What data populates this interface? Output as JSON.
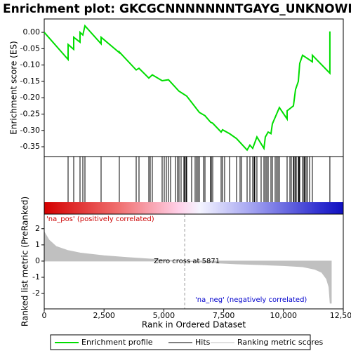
{
  "title": "Enrichment plot: GKCGCNNNNNNNTGAYG_UNKNOWN",
  "legend": [
    "Enrichment profile",
    "Hits",
    "Ranking metric scores"
  ],
  "chart_data": [
    {
      "type": "line",
      "ylabel": "Enrichment score (ES)",
      "color": "#00dd00",
      "x": [
        0,
        998,
        998,
        1232,
        1232,
        1496,
        1496,
        1614,
        1702,
        2377,
        2377,
        3139,
        3139,
        3844,
        3961,
        4372,
        4518,
        4929,
        5193,
        5633,
        5956,
        6484,
        6719,
        6954,
        7042,
        7394,
        7452,
        7746,
        8039,
        8480,
        8597,
        8714,
        8890,
        9184,
        9242,
        9360,
        9477,
        9536,
        9712,
        9829,
        10152,
        10152,
        10416,
        10504,
        10621,
        10680,
        10797,
        11208,
        11208,
        11940,
        11940
      ],
      "values": [
        0,
        -0.083,
        -0.037,
        -0.052,
        -0.015,
        -0.03,
        0,
        -0.008,
        0.02,
        -0.035,
        -0.015,
        -0.062,
        -0.06,
        -0.115,
        -0.11,
        -0.14,
        -0.13,
        -0.148,
        -0.145,
        -0.18,
        -0.195,
        -0.245,
        -0.255,
        -0.275,
        -0.278,
        -0.305,
        -0.298,
        -0.31,
        -0.325,
        -0.36,
        -0.345,
        -0.355,
        -0.32,
        -0.355,
        -0.32,
        -0.305,
        -0.31,
        -0.28,
        -0.25,
        -0.23,
        -0.265,
        -0.24,
        -0.225,
        -0.175,
        -0.15,
        -0.095,
        -0.07,
        -0.09,
        -0.07,
        -0.125,
        0.003
      ],
      "ylim": [
        -0.38,
        0.041
      ],
      "yticks": [
        {
          "value": 0,
          "label": "0.00"
        },
        {
          "value": -0.05,
          "label": "-0.05"
        },
        {
          "value": -0.1,
          "label": "-0.10"
        },
        {
          "value": -0.15,
          "label": "-0.15"
        },
        {
          "value": -0.2,
          "label": "-0.20"
        },
        {
          "value": -0.25,
          "label": "-0.25"
        },
        {
          "value": -0.3,
          "label": "-0.30"
        },
        {
          "value": -0.35,
          "label": "-0.35"
        }
      ]
    },
    {
      "type": "hits",
      "color": "#000000",
      "x": [
        998,
        1232,
        1496,
        1614,
        1702,
        2377,
        3139,
        3844,
        3961,
        4372,
        4430,
        4518,
        4929,
        5017,
        5105,
        5193,
        5281,
        5486,
        5574,
        5633,
        5721,
        5838,
        5868,
        5926,
        5956,
        6161,
        6308,
        6367,
        6426,
        6484,
        6660,
        6719,
        6954,
        6983,
        7042,
        7394,
        7452,
        7540,
        7746,
        8039,
        8186,
        8245,
        8480,
        8597,
        8714,
        8773,
        8802,
        8890,
        9066,
        9184,
        9242,
        9301,
        9360,
        9477,
        9536,
        9653,
        9712,
        9771,
        9829,
        10152,
        10270,
        10328,
        10416,
        10445,
        10504,
        10533,
        10621,
        10650,
        10680,
        10797,
        10856,
        10885,
        10944,
        11003,
        11091,
        11208,
        11940
      ]
    },
    {
      "type": "area",
      "ylabel": "Ranked list metric (PreRanked)",
      "xlabel": "Rank in Ordered Dataset",
      "color": "#c0c0c0",
      "x": [
        0,
        200,
        500,
        1000,
        1500,
        2500,
        3500,
        4500,
        5871,
        7000,
        8000,
        9000,
        10000,
        10800,
        11300,
        11600,
        11800,
        11900,
        11950,
        12000
      ],
      "values": [
        1.8,
        1.3,
        0.9,
        0.65,
        0.5,
        0.33,
        0.22,
        0.12,
        0,
        -0.1,
        -0.17,
        -0.22,
        -0.28,
        -0.35,
        -0.5,
        -0.7,
        -1.1,
        -1.6,
        -2.6,
        -2.6
      ],
      "ylim": [
        -2.95,
        2.9
      ],
      "yticks": [
        2,
        1,
        0,
        -1,
        -2
      ],
      "xlim": [
        0,
        12500
      ],
      "xticks": [
        0,
        {
          "value": 2500,
          "label": "2,500"
        },
        {
          "value": 5000,
          "label": "5,000"
        },
        {
          "value": 7500,
          "label": "7,500"
        },
        {
          "value": 10000,
          "label": "10,000"
        },
        {
          "value": 12500,
          "label": "12,500"
        }
      ],
      "zero_cross": 5871,
      "zero_label": "Zero cross at 5871",
      "pos_label": "'na_pos' (positively correlated)",
      "neg_label": "'na_neg' (negatively correlated)"
    }
  ]
}
